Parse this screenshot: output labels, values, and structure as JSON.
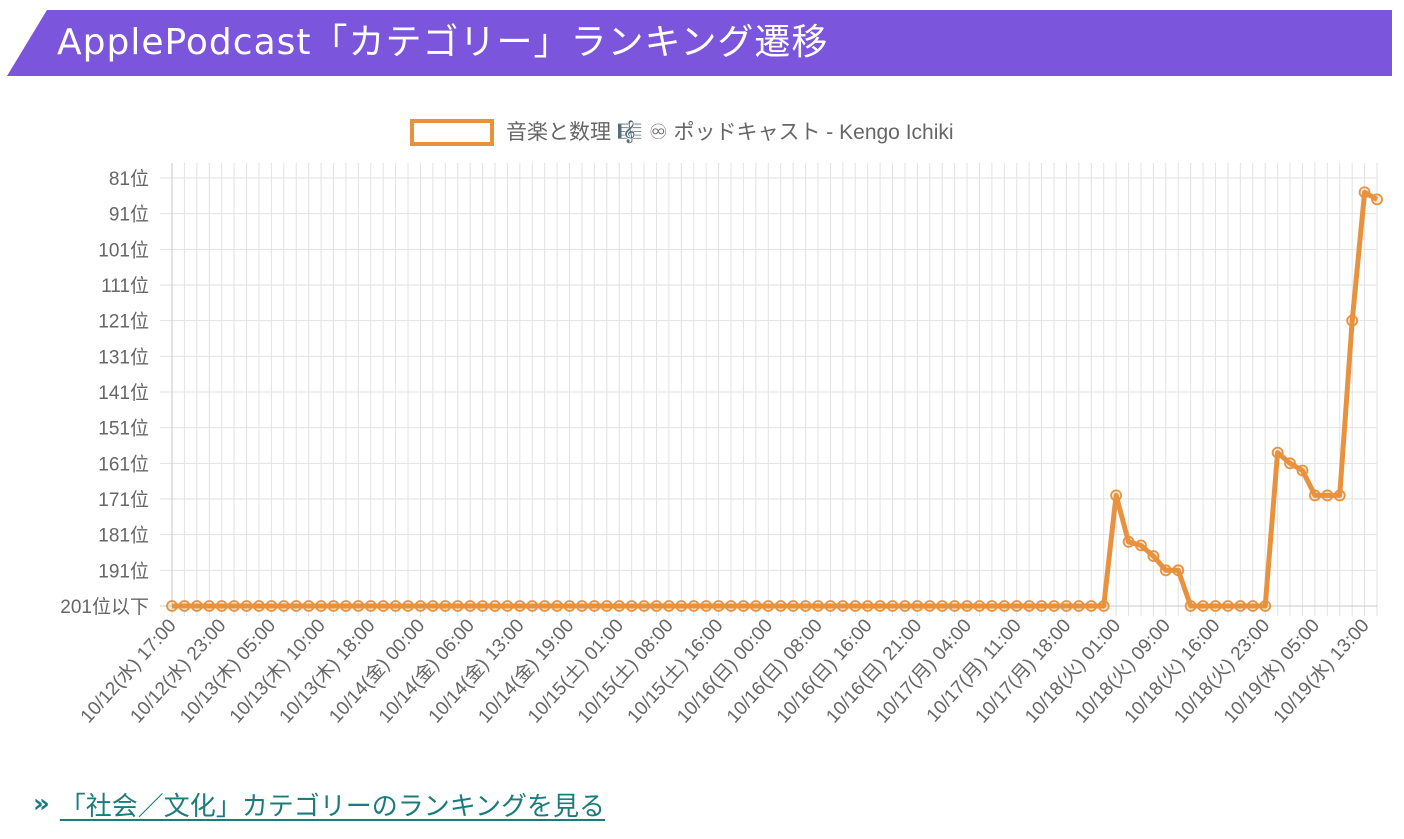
{
  "header": {
    "title": "ApplePodcast「カテゴリー」ランキング遷移"
  },
  "link": {
    "icon": "double-chevron-right-icon",
    "text": "「社会／文化」カテゴリーのランキングを見る"
  },
  "colors": {
    "banner": "#7b55dc",
    "series": "#e8923f",
    "link": "#1a7c7c",
    "grid": "#e2e2e2"
  },
  "chart_data": {
    "type": "line",
    "legend": {
      "position": "top"
    },
    "grid": true,
    "y_reversed": true,
    "ylim": [
      201,
      78
    ],
    "yticks": [
      81,
      91,
      101,
      111,
      121,
      131,
      141,
      151,
      161,
      171,
      181,
      191,
      201
    ],
    "ytick_labels": [
      "81位",
      "91位",
      "101位",
      "111位",
      "121位",
      "131位",
      "141位",
      "151位",
      "161位",
      "171位",
      "181位",
      "191位",
      "201位以下"
    ],
    "xtick_labels": [
      "10/12(水) 17:00",
      "10/12(水) 23:00",
      "10/13(木) 05:00",
      "10/13(木) 10:00",
      "10/13(木) 18:00",
      "10/14(金) 00:00",
      "10/14(金) 06:00",
      "10/14(金) 13:00",
      "10/14(金) 19:00",
      "10/15(土) 01:00",
      "10/15(土) 08:00",
      "10/15(土) 16:00",
      "10/16(日) 00:00",
      "10/16(日) 08:00",
      "10/16(日) 16:00",
      "10/16(日) 21:00",
      "10/17(月) 04:00",
      "10/17(月) 11:00",
      "10/17(月) 18:00",
      "10/18(火) 01:00",
      "10/18(火) 09:00",
      "10/18(火) 16:00",
      "10/18(火) 23:00",
      "10/19(水) 05:00",
      "10/19(水) 13:00"
    ],
    "series": [
      {
        "name": "音楽と数理 🎼 ♾ ポッドキャスト - Kengo Ichiki",
        "color": "#e8923f",
        "values": [
          201,
          201,
          201,
          201,
          201,
          201,
          201,
          201,
          201,
          201,
          201,
          201,
          201,
          201,
          201,
          201,
          201,
          201,
          201,
          201,
          201,
          201,
          201,
          201,
          201,
          201,
          201,
          201,
          201,
          201,
          201,
          201,
          201,
          201,
          201,
          201,
          201,
          201,
          201,
          201,
          201,
          201,
          201,
          201,
          201,
          201,
          201,
          201,
          201,
          201,
          201,
          201,
          201,
          201,
          201,
          201,
          201,
          201,
          201,
          201,
          201,
          201,
          201,
          201,
          201,
          201,
          201,
          201,
          201,
          201,
          201,
          201,
          201,
          201,
          201,
          201,
          170,
          183,
          184,
          187,
          191,
          191,
          201,
          201,
          201,
          201,
          201,
          201,
          201,
          158,
          161,
          163,
          170,
          170,
          170,
          121,
          85,
          87
        ]
      }
    ]
  }
}
